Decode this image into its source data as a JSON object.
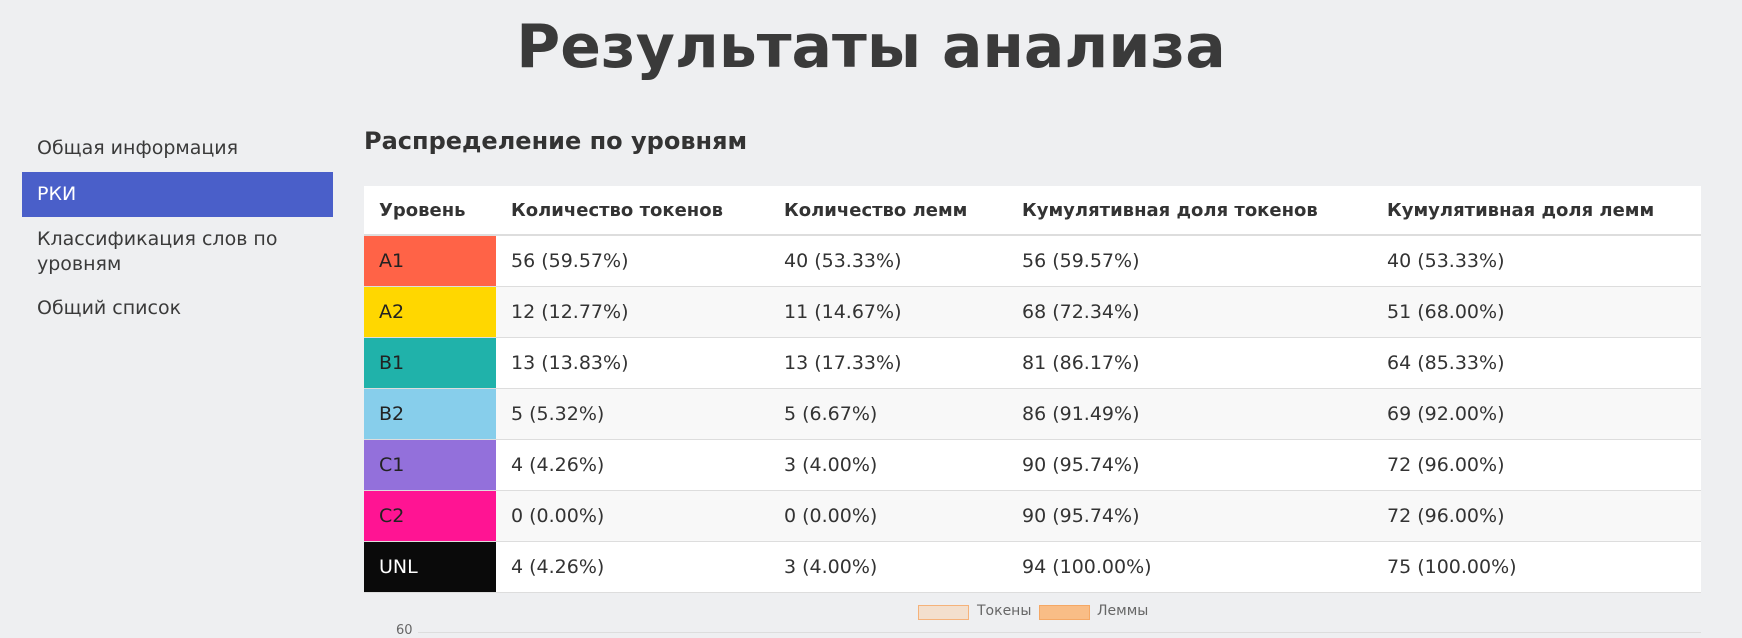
{
  "header": {
    "title": "Результаты анализа"
  },
  "sidebar": {
    "items": [
      "Общая информация",
      "РКИ",
      "Классификация слов по уровням",
      "Общий список"
    ],
    "active": 1,
    "active_color": "#4a5fc9"
  },
  "section": {
    "title": "Распределение по уровням"
  },
  "table": {
    "columns": [
      "Уровень",
      "Количество токенов",
      "Количество лемм",
      "Кумулятивная доля токенов",
      "Кумулятивная доля лемм"
    ],
    "rows": [
      [
        "A1",
        "56 (59.57%)",
        "40 (53.33%)",
        "56 (59.57%)",
        "40 (53.33%)"
      ],
      [
        "A2",
        "12 (12.77%)",
        "11 (14.67%)",
        "68 (72.34%)",
        "51 (68.00%)"
      ],
      [
        "B1",
        "13 (13.83%)",
        "13 (17.33%)",
        "81 (86.17%)",
        "64 (85.33%)"
      ],
      [
        "B2",
        "5 (5.32%)",
        "5 (6.67%)",
        "86 (91.49%)",
        "69 (92.00%)"
      ],
      [
        "C1",
        "4 (4.26%)",
        "3 (4.00%)",
        "90 (95.74%)",
        "72 (96.00%)"
      ],
      [
        "C2",
        "0 (0.00%)",
        "0 (0.00%)",
        "90 (95.74%)",
        "72 (96.00%)"
      ],
      [
        "UNL",
        "4 (4.26%)",
        "3 (4.00%)",
        "94 (100.00%)",
        "75 (100.00%)"
      ]
    ],
    "level_colors": [
      "#ff6347",
      "#ffd700",
      "#20b2aa",
      "#87ceeb",
      "#9370db",
      "#ff1493",
      "#0a0a0a"
    ]
  },
  "chart": {
    "legend": [
      {
        "name": "Токены",
        "color": "#f3dfcd",
        "border": "#f5b27a"
      },
      {
        "name": "Леммы",
        "color": "#f9bd86",
        "border": "#f5a865"
      }
    ],
    "yticks": [
      60
    ]
  }
}
